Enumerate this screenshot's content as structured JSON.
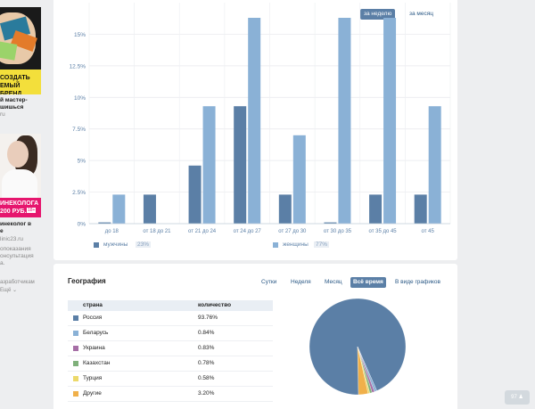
{
  "ads": {
    "ad1_banner_lines": [
      "СОЗДАТЬ",
      "ЕМЫЙ БРЕНД"
    ],
    "ad1_title": "й мастер-",
    "ad1_sub": "шишься",
    "ad1_domain": "ru",
    "ad2_banner_lines": [
      "ИНЕКОЛОГА",
      "200 РУБ."
    ],
    "ad2_badge": "18+",
    "ad2_title": "инеколог в",
    "ad2_title2": "е",
    "ad2_domain": "linic23.ru",
    "ad2_desc": [
      "опоказания",
      "онсультация",
      "а."
    ],
    "footer_links": [
      "азработчикам",
      "Ещё ⌄"
    ]
  },
  "period": {
    "week": "за неделю",
    "month": "за месяц"
  },
  "chart_data": {
    "type": "bar",
    "categories": [
      "до 18",
      "от 18 до 21",
      "от 21 до 24",
      "от 24 до 27",
      "от 27 до 30",
      "от 30 до 35",
      "от 35 до 45",
      "от 45"
    ],
    "series": [
      {
        "name": "мужчины",
        "share": "23%",
        "color": "#5b7fa6",
        "values": [
          0.1,
          2.3,
          4.6,
          9.3,
          2.3,
          0.1,
          2.3,
          2.3
        ]
      },
      {
        "name": "женщины",
        "share": "77%",
        "color": "#8ab1d6",
        "values": [
          2.3,
          0,
          9.3,
          16.3,
          7.0,
          16.3,
          16.3,
          9.3
        ]
      }
    ],
    "yticks": [
      "0%",
      "2.5%",
      "5%",
      "7.5%",
      "10%",
      "12.5%",
      "15%"
    ],
    "ytick_values": [
      0,
      2.5,
      5,
      7.5,
      10,
      12.5,
      15
    ],
    "ylim": [
      0,
      17.5
    ],
    "grid": true,
    "legend_position": "bottom-left"
  },
  "geography": {
    "title": "География",
    "tabs": [
      {
        "label": "Сутки",
        "active": false
      },
      {
        "label": "Неделя",
        "active": false
      },
      {
        "label": "Месяц",
        "active": false
      },
      {
        "label": "Всё время",
        "active": true
      },
      {
        "label": "В виде графиков",
        "active": false
      }
    ],
    "col_country": "страна",
    "col_count": "количество",
    "rows": [
      {
        "country": "Россия",
        "value": "93.76%",
        "share": 93.76,
        "color": "#5b7fa6"
      },
      {
        "country": "Беларусь",
        "value": "0.84%",
        "share": 0.84,
        "color": "#8ab1d6"
      },
      {
        "country": "Украина",
        "value": "0.83%",
        "share": 0.83,
        "color": "#a66ea6"
      },
      {
        "country": "Казахстан",
        "value": "0.78%",
        "share": 0.78,
        "color": "#7fb07a"
      },
      {
        "country": "Турция",
        "value": "0.58%",
        "share": 0.58,
        "color": "#ecd96a"
      },
      {
        "country": "Другие",
        "value": "3.20%",
        "share": 3.2,
        "color": "#f0b04a"
      }
    ]
  },
  "widget": {
    "count": "97"
  }
}
